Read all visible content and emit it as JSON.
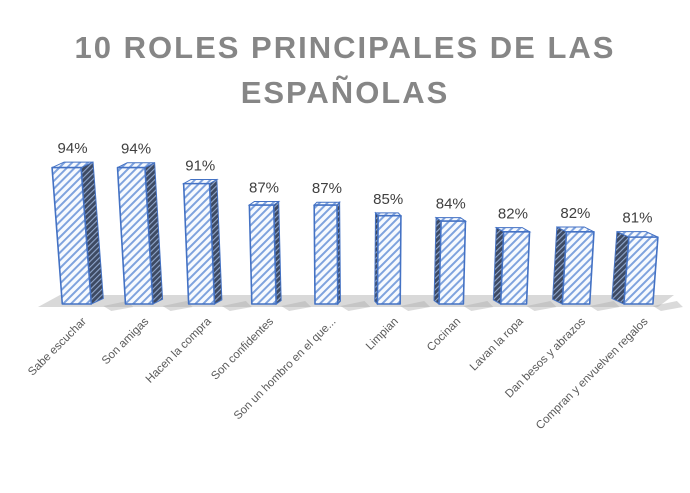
{
  "chart_data": {
    "type": "bar",
    "style": "3d-column-hatched",
    "title": "10 ROLES PRINCIPALES DE LAS ESPAÑOLAS",
    "categories": [
      "Sabe escuchar",
      "Son amigas",
      "Hacen la compra",
      "Son confidentes",
      "Son un hombro en el que...",
      "Limpian",
      "Cocinan",
      "Lavan la ropa",
      "Dan besos y abrazos",
      "Compran y envuelven regalos"
    ],
    "values": [
      94,
      94,
      91,
      87,
      87,
      85,
      84,
      82,
      82,
      81
    ],
    "data_labels": [
      "94%",
      "94%",
      "91%",
      "87%",
      "87%",
      "85%",
      "84%",
      "82%",
      "82%",
      "81%"
    ],
    "xlabel": "",
    "ylabel": "",
    "axes_visible": false,
    "grid": false,
    "legend": "none",
    "baseline_value": 68.5,
    "ylim": [
      68.5,
      100
    ],
    "category_label_rotation_deg": -45,
    "colors": {
      "bar_outline": "#4472C4",
      "front_hatch_line": "#7FA3DE",
      "front_face_bg": "#F7FAFE",
      "side_face_bg": "#3D4A63",
      "side_hatch_line": "#8FA6CC",
      "floor": "#D9D9D9",
      "shadow": "#ACACAC",
      "title": "#868686",
      "data_label": "#404040",
      "category_label": "#595959",
      "background": "#FFFFFF"
    }
  }
}
